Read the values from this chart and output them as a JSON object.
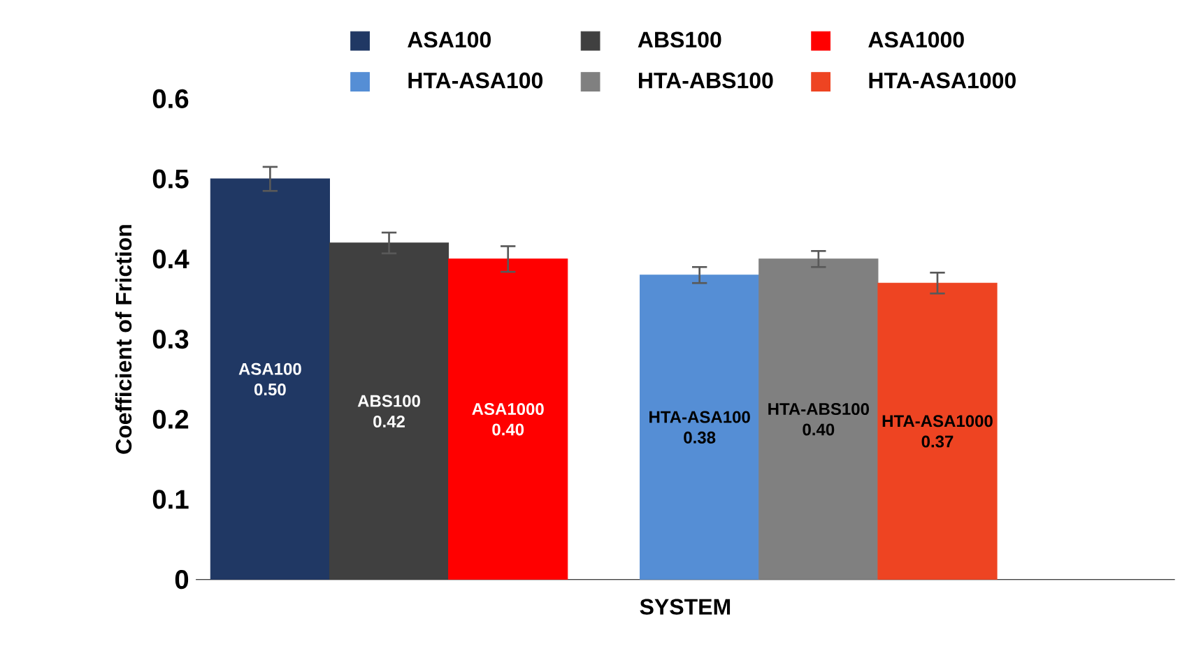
{
  "chart_data": {
    "type": "bar",
    "xlabel": "SYSTEM",
    "ylabel": "Coefficient of Friction",
    "categories": [
      null,
      null
    ],
    "series": [
      {
        "name": "ASA100",
        "color": "#203864",
        "values": [
          0.5,
          null
        ],
        "errors": [
          0.015,
          null
        ],
        "value_labels": [
          "0.50",
          null
        ]
      },
      {
        "name": "ABS100",
        "color": "#404040",
        "values": [
          0.42,
          null
        ],
        "errors": [
          0.013,
          null
        ],
        "value_labels": [
          "0.42",
          null
        ]
      },
      {
        "name": "ASA1000",
        "color": "#ff0000",
        "values": [
          0.4,
          null
        ],
        "errors": [
          0.016,
          null
        ],
        "value_labels": [
          "0.40",
          null
        ]
      },
      {
        "name": "HTA-ASA100",
        "color": "#558ed5",
        "values": [
          null,
          0.38
        ],
        "errors": [
          null,
          0.01
        ],
        "value_labels": [
          null,
          "0.38"
        ]
      },
      {
        "name": "HTA-ABS100",
        "color": "#808080",
        "values": [
          null,
          0.4
        ],
        "errors": [
          null,
          0.01
        ],
        "value_labels": [
          null,
          "0.40"
        ]
      },
      {
        "name": "HTA-ASA1000",
        "color": "#ee4422",
        "values": [
          null,
          0.37
        ],
        "errors": [
          null,
          0.013
        ],
        "value_labels": [
          null,
          "0.37"
        ]
      }
    ],
    "ylim": [
      0,
      0.6
    ],
    "yticks": [
      0,
      0.1,
      0.2,
      0.3,
      0.4,
      0.5,
      0.6
    ],
    "legend": "top",
    "grid": false
  }
}
